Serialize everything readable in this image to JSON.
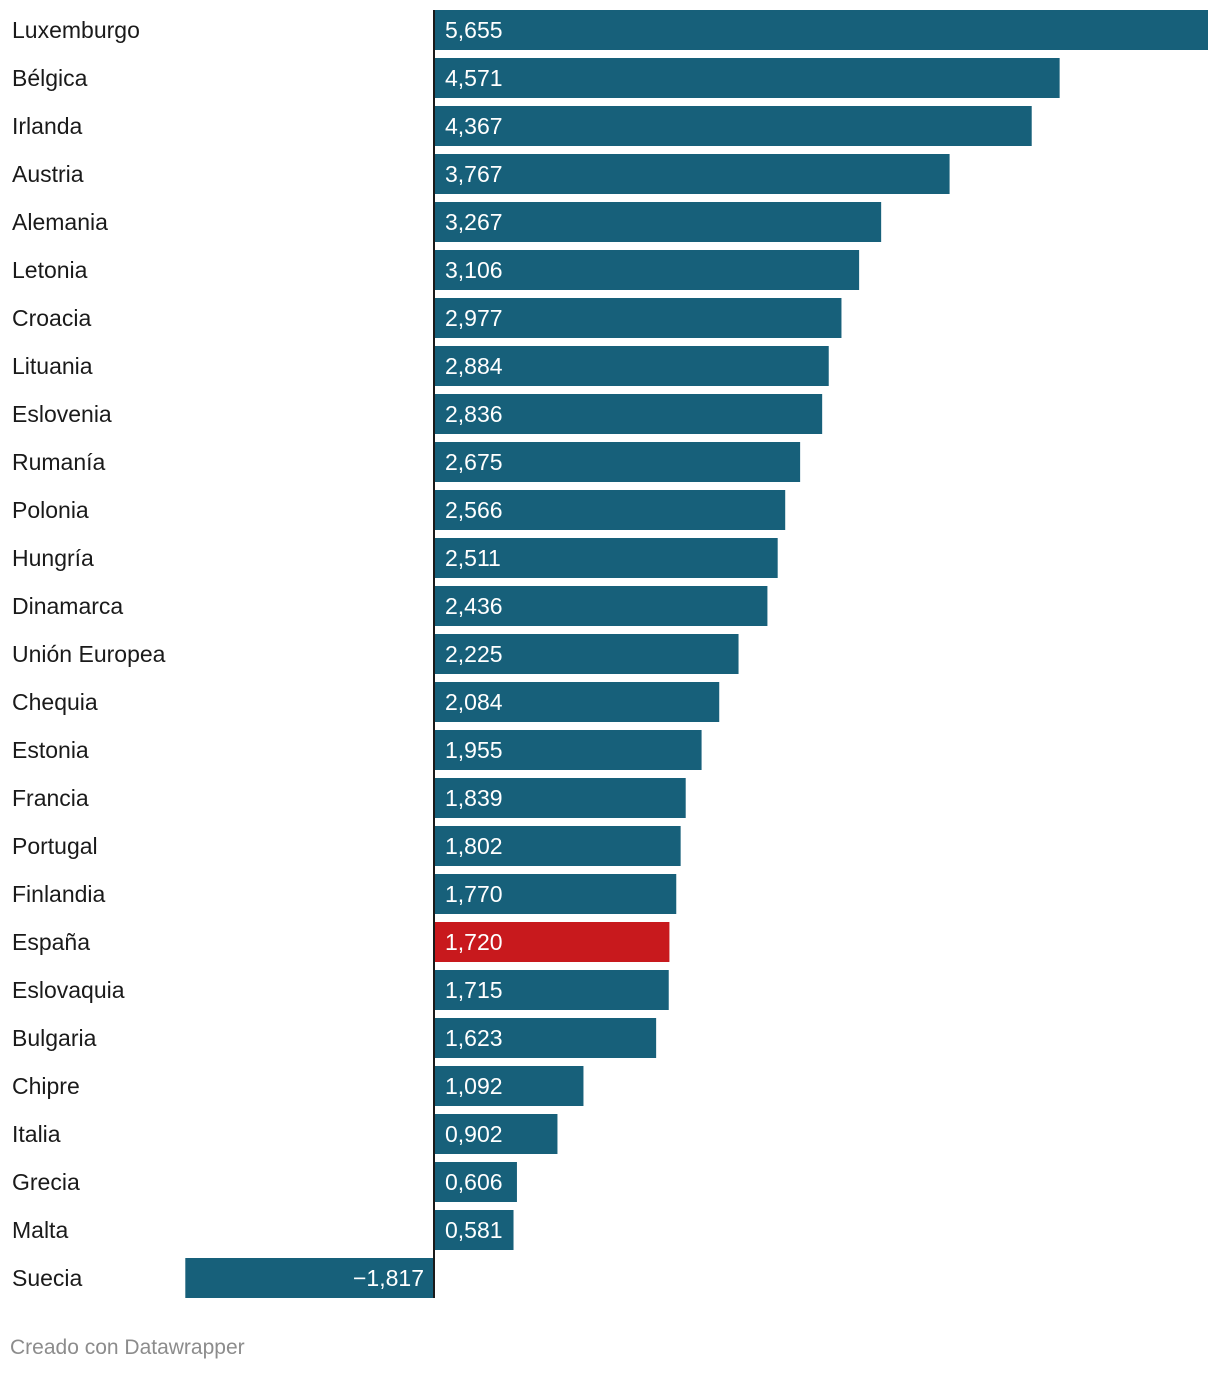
{
  "chart_data": {
    "type": "bar",
    "orientation": "horizontal",
    "categories": [
      "Luxemburgo",
      "Bélgica",
      "Irlanda",
      "Austria",
      "Alemania",
      "Letonia",
      "Croacia",
      "Lituania",
      "Eslovenia",
      "Rumanía",
      "Polonia",
      "Hungría",
      "Dinamarca",
      "Unión Europea",
      "Chequia",
      "Estonia",
      "Francia",
      "Portugal",
      "Finlandia",
      "España",
      "Eslovaquia",
      "Bulgaria",
      "Chipre",
      "Italia",
      "Grecia",
      "Malta",
      "Suecia"
    ],
    "values": [
      5.655,
      4.571,
      4.367,
      3.767,
      3.267,
      3.106,
      2.977,
      2.884,
      2.836,
      2.675,
      2.566,
      2.511,
      2.436,
      2.225,
      2.084,
      1.955,
      1.839,
      1.802,
      1.77,
      1.72,
      1.715,
      1.623,
      1.092,
      0.902,
      0.606,
      0.581,
      -1.817
    ],
    "value_labels": [
      "5,655",
      "4,571",
      "4,367",
      "3,767",
      "3,267",
      "3,106",
      "2,977",
      "2,884",
      "2,836",
      "2,675",
      "2,566",
      "2,511",
      "2,436",
      "2,225",
      "2,084",
      "1,955",
      "1,839",
      "1,802",
      "1,770",
      "1,720",
      "1,715",
      "1,623",
      "1,092",
      "0,902",
      "0,606",
      "0,581",
      "−1,817"
    ],
    "highlight": "España",
    "xlim": [
      -1.817,
      5.655
    ],
    "title": "",
    "xlabel": "",
    "ylabel": ""
  },
  "colors": {
    "bar": "#17607a",
    "highlight": "#c8191d",
    "axis": "#1a1a1a"
  },
  "footer": {
    "credit": "Creado con Datawrapper"
  }
}
